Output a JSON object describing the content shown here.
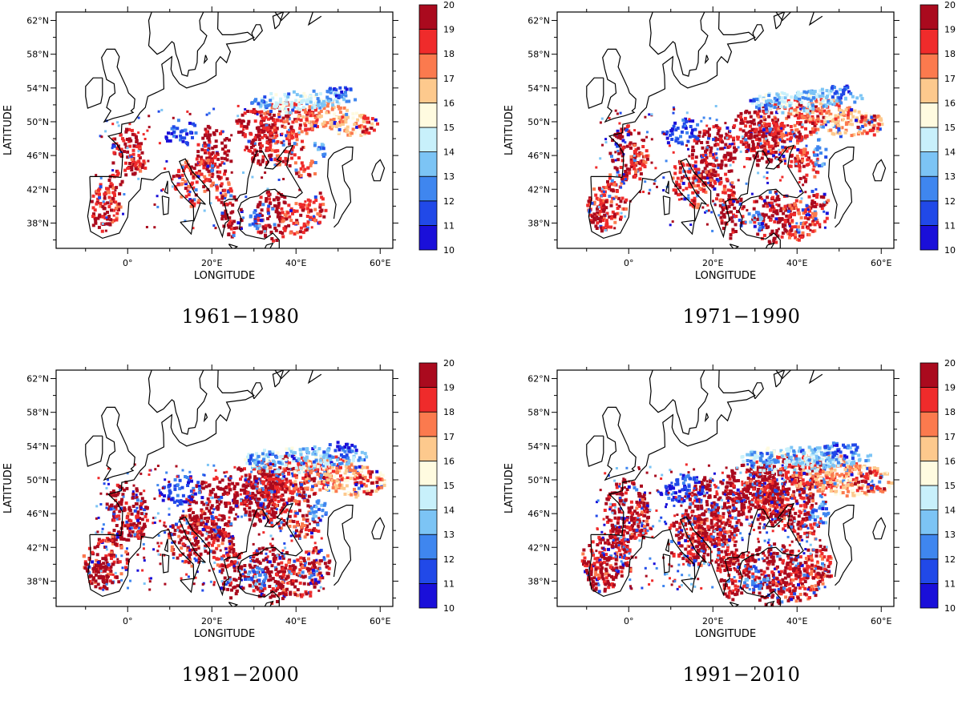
{
  "figure": {
    "panels": [
      {
        "period": "1961-1980",
        "variant": 0
      },
      {
        "period": "1971-1990",
        "variant": 1
      },
      {
        "period": "1981-2000",
        "variant": 2
      },
      {
        "period": "1991-2010",
        "variant": 3
      }
    ],
    "axes": {
      "xlabel": "LONGITUDE",
      "ylabel": "LATITUDE",
      "lat_ticks": [
        "62°N",
        "58°N",
        "54°N",
        "50°N",
        "46°N",
        "42°N",
        "38°N"
      ],
      "lon_ticks": [
        "0°",
        "20°E",
        "40°E",
        "60°E"
      ]
    },
    "colorbar": {
      "labels": [
        "10",
        "11",
        "12",
        "13",
        "14",
        "15",
        "16",
        "17",
        "18",
        "19",
        "20"
      ],
      "colors": [
        "#1a0fd9",
        "#2149e8",
        "#3f86ef",
        "#7cc4f5",
        "#c8f0fb",
        "#fffbe0",
        "#fdc98d",
        "#fb7a4e",
        "#ef2b2b",
        "#aa0a1e"
      ]
    }
  }
}
